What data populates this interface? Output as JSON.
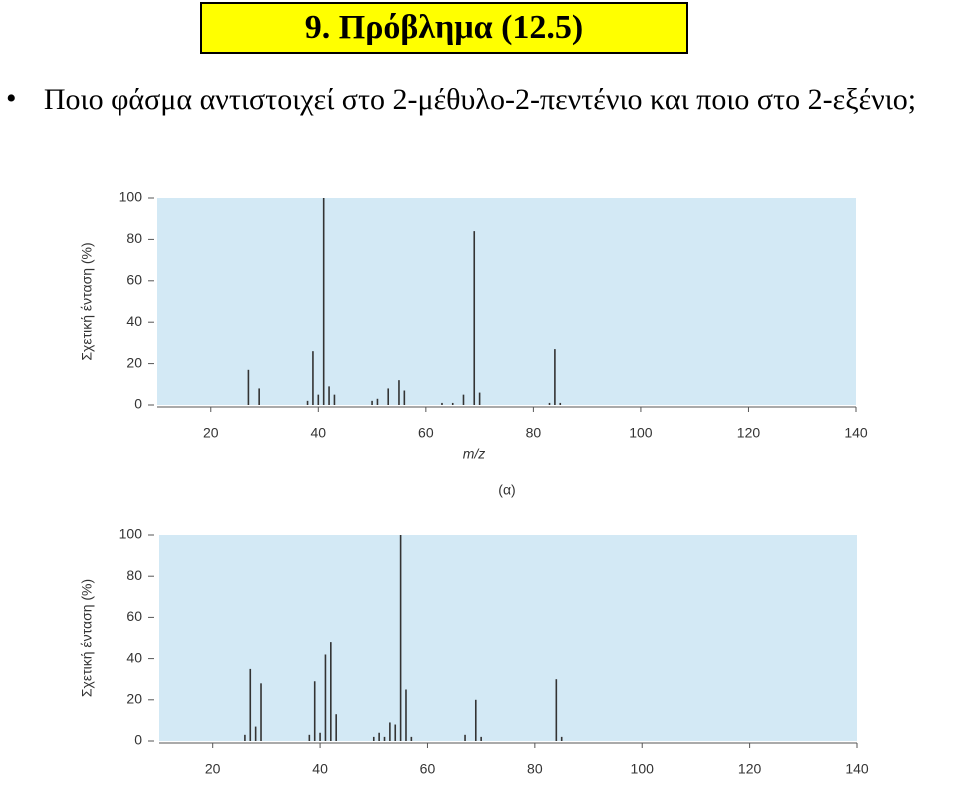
{
  "title": "9. Πρόβλημα (12.5)",
  "bullet": "Ποιο φάσμα αντιστοιχεί στο 2-μέθυλο-2-πεντένιο και ποιο στο 2-εξένιο;",
  "chart_data": [
    {
      "type": "bar",
      "y_label": "Σχετική ένταση (%)",
      "x_label": "m/z",
      "caption": "(α)",
      "color": "#333333",
      "x": [
        27,
        29,
        38,
        39,
        40,
        41,
        42,
        43,
        50,
        51,
        53,
        55,
        56,
        63,
        65,
        67,
        69,
        70,
        83,
        84,
        85
      ],
      "values": [
        17,
        8,
        2,
        26,
        5,
        100,
        9,
        5,
        2,
        3,
        8,
        12,
        7,
        1,
        1,
        5,
        84,
        6,
        1,
        27,
        1
      ],
      "xlim": [
        10,
        140
      ],
      "xticks": [
        20,
        40,
        60,
        80,
        100,
        120,
        140
      ],
      "ylim": [
        0,
        100
      ],
      "yticks": [
        0,
        20,
        40,
        60,
        80,
        100
      ]
    },
    {
      "type": "bar",
      "y_label": "Σχετική ένταση (%)",
      "color": "#333333",
      "x": [
        26,
        27,
        28,
        29,
        38,
        39,
        40,
        41,
        42,
        43,
        50,
        51,
        52,
        53,
        54,
        55,
        56,
        57,
        67,
        69,
        70,
        84,
        85
      ],
      "values": [
        3,
        35,
        7,
        28,
        3,
        29,
        4,
        42,
        48,
        13,
        2,
        4,
        2,
        9,
        8,
        100,
        25,
        2,
        3,
        20,
        2,
        30,
        2
      ],
      "xlim": [
        10,
        140
      ],
      "xticks": [
        20,
        40,
        60,
        80,
        100,
        120,
        140
      ],
      "ylim": [
        0,
        100
      ],
      "yticks": [
        0,
        20,
        40,
        60,
        80,
        100
      ]
    }
  ]
}
